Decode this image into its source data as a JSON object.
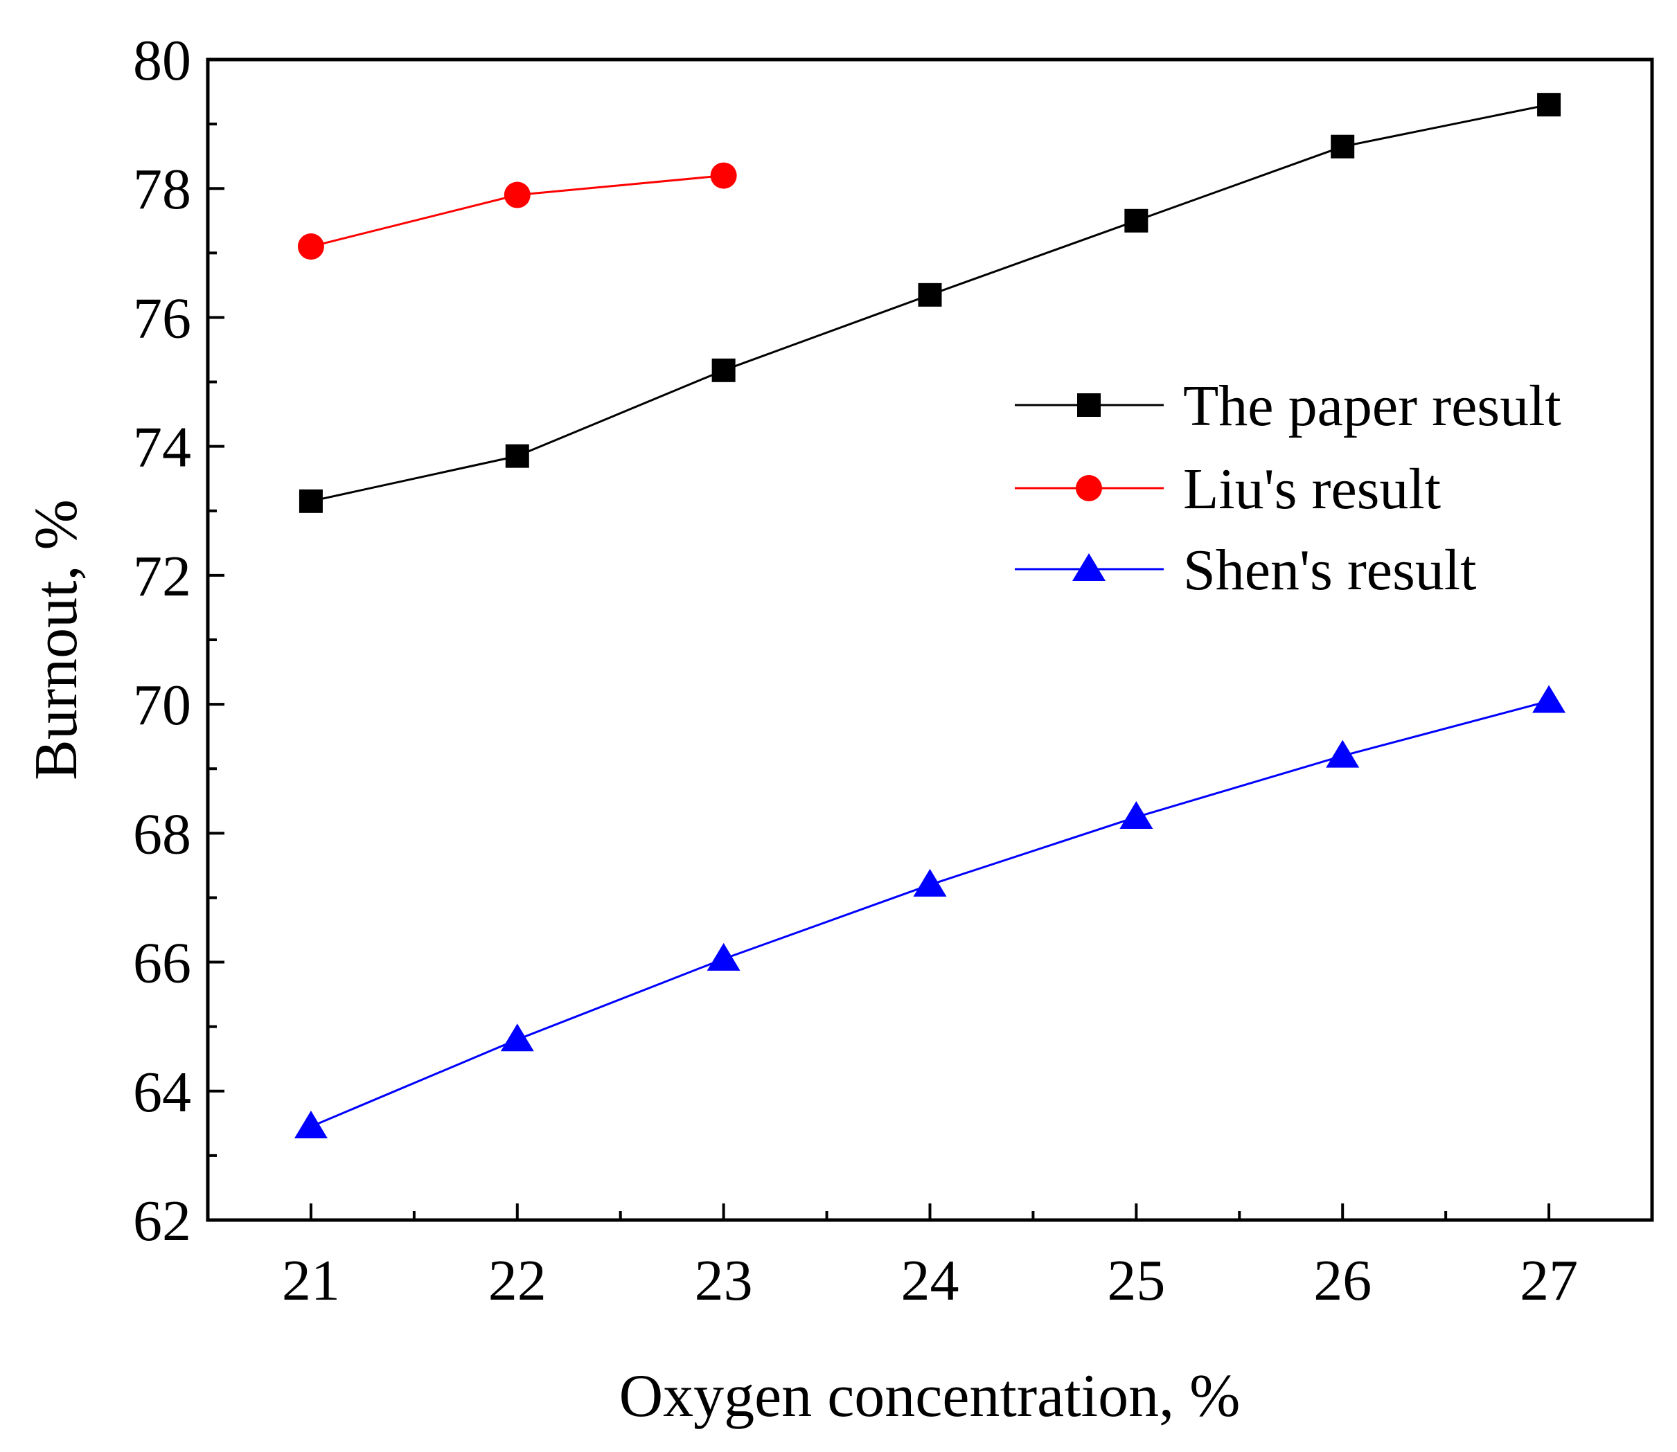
{
  "chart_data": {
    "type": "line",
    "title": "",
    "xlabel": "Oxygen concentration, %",
    "ylabel": "Burnout, %",
    "xlim": [
      20.5,
      27.5
    ],
    "ylim": [
      62,
      80
    ],
    "xticks": [
      21,
      22,
      23,
      24,
      25,
      26,
      27
    ],
    "yticks": [
      62,
      64,
      66,
      68,
      70,
      72,
      74,
      76,
      78,
      80
    ],
    "grid": false,
    "legend_position": "right",
    "series": [
      {
        "name": "The paper result",
        "color": "#000000",
        "marker": "square",
        "x": [
          21,
          22,
          23,
          24,
          25,
          26,
          27
        ],
        "values": [
          73.15,
          73.85,
          75.18,
          76.35,
          77.5,
          78.65,
          79.3
        ]
      },
      {
        "name": "Liu's result",
        "color": "#ff0000",
        "marker": "circle",
        "x": [
          21,
          22,
          23
        ],
        "values": [
          77.1,
          77.9,
          78.2
        ]
      },
      {
        "name": "Shen's result",
        "color": "#0000ff",
        "marker": "triangle",
        "x": [
          21,
          22,
          23,
          24,
          25,
          26,
          27
        ],
        "values": [
          63.45,
          64.8,
          66.05,
          67.2,
          68.25,
          69.2,
          70.05
        ]
      }
    ]
  }
}
